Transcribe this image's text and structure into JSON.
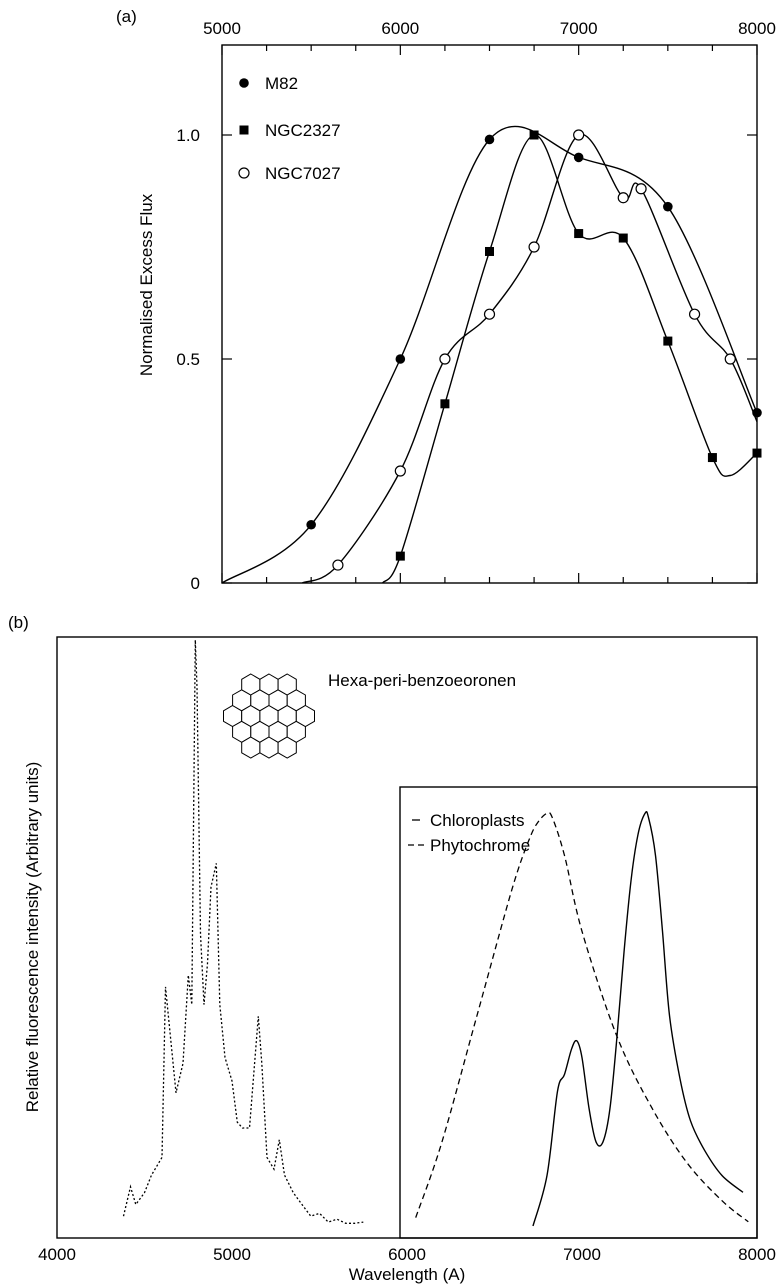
{
  "chart_data": [
    {
      "panel": "(a)",
      "type": "line",
      "ylabel": "Normalised Excess Flux",
      "xlim": [
        5000,
        8000
      ],
      "ylim": [
        0,
        1.0
      ],
      "x_ticks": [
        "5000",
        "6000",
        "7000",
        "8000"
      ],
      "y_ticks": [
        "0",
        "0.5",
        "1.0"
      ],
      "series": [
        {
          "name": "M82",
          "marker": "filled-circle",
          "x": [
            5500,
            6000,
            6500,
            7000,
            7500,
            8000
          ],
          "y": [
            0.13,
            0.5,
            0.99,
            0.95,
            0.84,
            0.38
          ]
        },
        {
          "name": "NGC2327",
          "marker": "filled-square",
          "x": [
            6000,
            6250,
            6500,
            6750,
            7000,
            7250,
            7500,
            7750,
            8000
          ],
          "y": [
            0.06,
            0.4,
            0.74,
            1.0,
            0.78,
            0.77,
            0.54,
            0.28,
            0.29
          ]
        },
        {
          "name": "NGC7027",
          "marker": "open-circle",
          "x": [
            5650,
            6000,
            6250,
            6500,
            6750,
            7000,
            7250,
            7350,
            7650,
            7850
          ],
          "y": [
            0.04,
            0.25,
            0.5,
            0.6,
            0.75,
            1.0,
            0.86,
            0.88,
            0.6,
            0.5
          ]
        }
      ]
    },
    {
      "panel": "(b)",
      "type": "line",
      "xlabel": "Wavelength (A)",
      "ylabel": "Relative fluorescence intensity (Arbitrary units)",
      "xlim": [
        4000,
        8000
      ],
      "x_ticks": [
        "4000",
        "5000",
        "6000",
        "7000",
        "8000"
      ],
      "annotation": "Hexa-peri-benzoeoronen",
      "series": [
        {
          "line_style": "dotted",
          "x": [
            4380,
            4420,
            4450,
            4500,
            4540,
            4600,
            4620,
            4680,
            4720,
            4750,
            4770,
            4790,
            4800,
            4820,
            4840,
            4860,
            4880,
            4910,
            4930,
            4960,
            5000,
            5030,
            5060,
            5100,
            5150,
            5170,
            5200,
            5240,
            5270,
            5300,
            5350,
            5400,
            5450,
            5500,
            5550,
            5600,
            5650,
            5700,
            5750
          ],
          "y": [
            0.02,
            0.07,
            0.04,
            0.06,
            0.09,
            0.12,
            0.41,
            0.23,
            0.28,
            0.43,
            0.38,
            1.0,
            0.92,
            0.5,
            0.38,
            0.45,
            0.58,
            0.62,
            0.38,
            0.29,
            0.25,
            0.18,
            0.17,
            0.17,
            0.36,
            0.28,
            0.12,
            0.1,
            0.15,
            0.09,
            0.06,
            0.04,
            0.02,
            0.025,
            0.01,
            0.015,
            0.008,
            0.008,
            0.01
          ]
        },
        {
          "name": "Chloroplasts",
          "line_style": "solid",
          "x": [
            6720,
            6800,
            6860,
            6900,
            6940,
            6970,
            7000,
            7040,
            7080,
            7120,
            7160,
            7200,
            7240,
            7280,
            7320,
            7360,
            7380,
            7420,
            7460,
            7500,
            7560,
            7620,
            7700,
            7800,
            7920
          ],
          "y": [
            0.0,
            0.12,
            0.32,
            0.36,
            0.42,
            0.44,
            0.4,
            0.28,
            0.2,
            0.2,
            0.28,
            0.45,
            0.65,
            0.82,
            0.93,
            0.98,
            0.97,
            0.88,
            0.7,
            0.5,
            0.35,
            0.25,
            0.18,
            0.12,
            0.08
          ]
        },
        {
          "name": "Phytochrome",
          "line_style": "dashed",
          "x": [
            6050,
            6200,
            6400,
            6600,
            6700,
            6750,
            6800,
            6830,
            6900,
            7000,
            7200,
            7400,
            7600,
            7800,
            7950
          ],
          "y": [
            0.02,
            0.2,
            0.5,
            0.8,
            0.92,
            0.96,
            0.98,
            0.97,
            0.88,
            0.7,
            0.45,
            0.28,
            0.15,
            0.06,
            0.01
          ]
        }
      ]
    }
  ]
}
